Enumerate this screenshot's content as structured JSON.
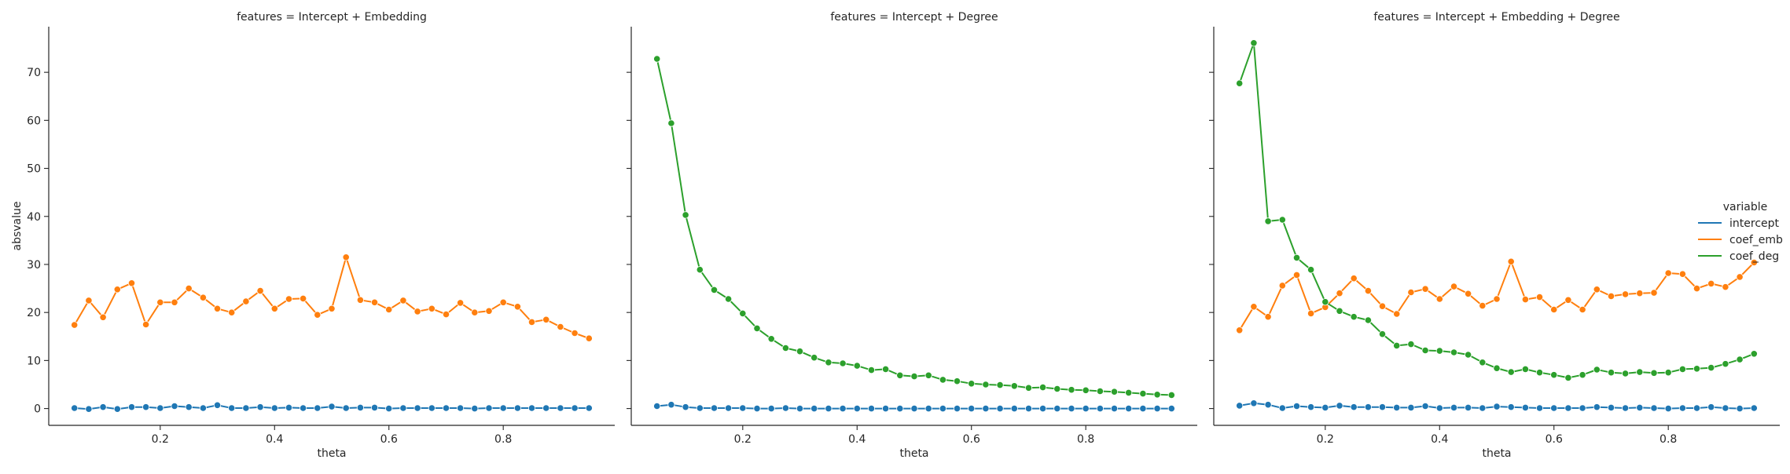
{
  "chart_data": {
    "type": "line",
    "ylabel": "absvalue",
    "ylim": [
      -3.5,
      79.5
    ],
    "yticks": [
      0,
      10,
      20,
      30,
      40,
      50,
      60,
      70
    ],
    "xlim": [
      0.005,
      0.995
    ],
    "xticks": [
      0.2,
      0.4,
      0.6,
      0.8
    ],
    "legend": {
      "title": "variable",
      "position": "right",
      "entries": [
        {
          "name": "intercept",
          "color": "#1f77b4"
        },
        {
          "name": "coef_emb",
          "color": "#ff7f0e"
        },
        {
          "name": "coef_deg",
          "color": "#2ca02c"
        }
      ]
    },
    "x": [
      0.05,
      0.075,
      0.1,
      0.125,
      0.15,
      0.175,
      0.2,
      0.225,
      0.25,
      0.275,
      0.3,
      0.325,
      0.35,
      0.375,
      0.4,
      0.425,
      0.45,
      0.475,
      0.5,
      0.525,
      0.55,
      0.575,
      0.6,
      0.625,
      0.65,
      0.675,
      0.7,
      0.725,
      0.75,
      0.775,
      0.8,
      0.825,
      0.85,
      0.875,
      0.9,
      0.925,
      0.95
    ],
    "panels": [
      {
        "title": "features = Intercept + Embedding",
        "xlabel": "theta",
        "series": [
          {
            "name": "intercept",
            "values": [
              0.1,
              -0.1,
              0.3,
              -0.1,
              0.3,
              0.3,
              0.1,
              0.5,
              0.3,
              0.1,
              0.7,
              0.1,
              0.1,
              0.3,
              0.1,
              0.2,
              0.1,
              0.1,
              0.4,
              0.1,
              0.2,
              0.2,
              0.0,
              0.1,
              0.1,
              0.1,
              0.1,
              0.1,
              0.0,
              0.1,
              0.1,
              0.1,
              0.1,
              0.1,
              0.1,
              0.1,
              0.1
            ]
          },
          {
            "name": "coef_emb",
            "values": [
              17.4,
              22.5,
              19.0,
              24.8,
              26.1,
              17.5,
              22.1,
              22.1,
              25.0,
              23.1,
              20.8,
              20.0,
              22.3,
              24.5,
              20.8,
              22.8,
              22.9,
              19.5,
              20.8,
              31.5,
              22.6,
              22.1,
              20.6,
              22.5,
              20.2,
              20.8,
              19.6,
              22.0,
              20.0,
              20.3,
              22.1,
              21.2,
              18.0,
              18.5,
              17.0,
              15.7,
              14.6
            ]
          }
        ]
      },
      {
        "title": "features = Intercept + Degree",
        "xlabel": "theta",
        "series": [
          {
            "name": "intercept",
            "values": [
              0.5,
              0.8,
              0.3,
              0.1,
              0.1,
              0.1,
              0.1,
              0.0,
              0.0,
              0.1,
              0.0,
              0.0,
              0.0,
              0.0,
              0.0,
              0.0,
              0.0,
              0.0,
              0.0,
              0.0,
              0.0,
              0.0,
              0.0,
              0.0,
              0.0,
              0.0,
              0.0,
              0.0,
              0.0,
              0.0,
              0.0,
              0.0,
              0.0,
              0.0,
              0.0,
              0.0,
              0.0
            ]
          },
          {
            "name": "coef_deg",
            "values": [
              72.8,
              59.4,
              40.3,
              28.9,
              24.7,
              22.8,
              19.8,
              16.7,
              14.5,
              12.6,
              11.9,
              10.6,
              9.6,
              9.4,
              8.9,
              8.0,
              8.2,
              6.9,
              6.7,
              6.9,
              6.0,
              5.7,
              5.2,
              5.0,
              4.9,
              4.7,
              4.3,
              4.4,
              4.1,
              3.9,
              3.8,
              3.6,
              3.5,
              3.3,
              3.1,
              2.9,
              2.8
            ]
          }
        ]
      },
      {
        "title": "features = Intercept + Embedding + Degree",
        "xlabel": "theta",
        "series": [
          {
            "name": "intercept",
            "values": [
              0.6,
              1.1,
              0.8,
              0.1,
              0.5,
              0.3,
              0.2,
              0.6,
              0.3,
              0.3,
              0.3,
              0.2,
              0.2,
              0.5,
              0.1,
              0.2,
              0.2,
              0.1,
              0.4,
              0.3,
              0.2,
              0.1,
              0.1,
              0.1,
              0.1,
              0.3,
              0.2,
              0.1,
              0.2,
              0.1,
              0.0,
              0.1,
              0.1,
              0.3,
              0.1,
              0.0,
              0.1
            ]
          },
          {
            "name": "coef_emb",
            "values": [
              16.3,
              21.2,
              19.1,
              25.6,
              27.8,
              19.8,
              21.1,
              24.0,
              27.1,
              24.5,
              21.3,
              19.7,
              24.2,
              24.9,
              22.8,
              25.4,
              23.9,
              21.4,
              22.8,
              30.6,
              22.7,
              23.2,
              20.6,
              22.6,
              20.6,
              24.8,
              23.4,
              23.8,
              24.0,
              24.1,
              28.2,
              28.0,
              25.0,
              26.0,
              25.3,
              27.4,
              30.4
            ]
          },
          {
            "name": "coef_deg",
            "values": [
              67.7,
              76.1,
              39.0,
              39.3,
              31.4,
              28.9,
              22.2,
              20.3,
              19.1,
              18.4,
              15.5,
              13.1,
              13.4,
              12.1,
              12.0,
              11.7,
              11.2,
              9.6,
              8.4,
              7.6,
              8.2,
              7.5,
              7.0,
              6.4,
              7.0,
              8.1,
              7.5,
              7.3,
              7.6,
              7.4,
              7.5,
              8.2,
              8.3,
              8.5,
              9.3,
              10.2,
              11.4
            ]
          }
        ]
      }
    ]
  }
}
